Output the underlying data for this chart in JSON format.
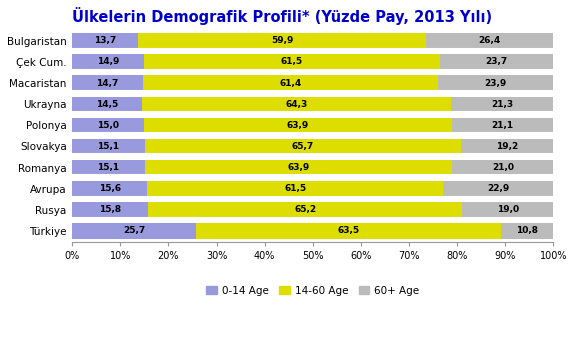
{
  "title": "Ülkelerin Demografik Profili* (Yüzde Pay, 2013 Yılı)",
  "countries": [
    "Bulgaristan",
    "Çek Cum.",
    "Macaristan",
    "Ukrayna",
    "Polonya",
    "Slovakya",
    "Romanya",
    "Avrupa",
    "Rusya",
    "Türkiye"
  ],
  "age_0_14": [
    13.7,
    14.9,
    14.7,
    14.5,
    15.0,
    15.1,
    15.1,
    15.6,
    15.8,
    25.7
  ],
  "age_14_60": [
    59.9,
    61.5,
    61.4,
    64.3,
    63.9,
    65.7,
    63.9,
    61.5,
    65.2,
    63.5
  ],
  "age_60_plus": [
    26.4,
    23.7,
    23.9,
    21.3,
    21.1,
    19.2,
    21.0,
    22.9,
    19.0,
    10.8
  ],
  "color_0_14": "#9999dd",
  "color_14_60": "#dddd00",
  "color_60_plus": "#bbbbbb",
  "legend_labels": [
    "0-14 Age",
    "14-60 Age",
    "60+ Age"
  ],
  "title_color": "#0000cc",
  "title_fontsize": 10.5,
  "bar_height": 0.72,
  "figsize": [
    5.74,
    3.48
  ],
  "dpi": 100
}
